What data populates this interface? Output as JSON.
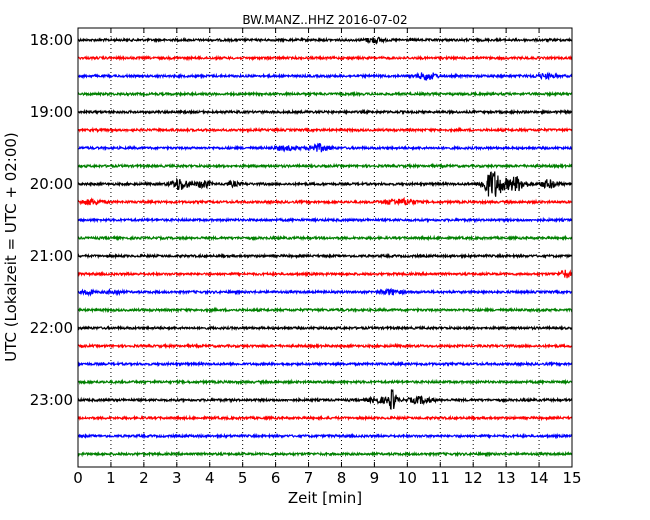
{
  "chart_data": {
    "type": "line",
    "title": "BW.MANZ..HHZ 2016-07-02",
    "xlabel": "Zeit  [min]",
    "ylabel": "UTC (Lokalzeit = UTC + 02:00)",
    "x_ticks": [
      0,
      1,
      2,
      3,
      4,
      5,
      6,
      7,
      8,
      9,
      10,
      11,
      12,
      13,
      14,
      15
    ],
    "xlim": [
      0,
      15
    ],
    "y_tick_labels": [
      "18:00",
      "19:00",
      "20:00",
      "21:00",
      "22:00",
      "23:00"
    ],
    "grid": "vertical dotted",
    "trace_colors": [
      "#000000",
      "#ff0000",
      "#0000ff",
      "#008000"
    ],
    "traces": [
      {
        "start": "18:00",
        "color": "#000000",
        "bursts": [
          {
            "x": 9.0,
            "amp": 2.5,
            "width": 0.5
          }
        ]
      },
      {
        "start": "18:15",
        "color": "#ff0000",
        "bursts": []
      },
      {
        "start": "18:30",
        "color": "#0000ff",
        "bursts": [
          {
            "x": 10.6,
            "amp": 3.5,
            "width": 0.6
          },
          {
            "x": 14.2,
            "amp": 2,
            "width": 0.6
          }
        ]
      },
      {
        "start": "18:45",
        "color": "#008000",
        "bursts": []
      },
      {
        "start": "19:00",
        "color": "#000000",
        "bursts": []
      },
      {
        "start": "19:15",
        "color": "#ff0000",
        "bursts": []
      },
      {
        "start": "19:30",
        "color": "#0000ff",
        "bursts": [
          {
            "x": 6.3,
            "amp": 2,
            "width": 0.6
          },
          {
            "x": 7.3,
            "amp": 3.5,
            "width": 0.6
          }
        ]
      },
      {
        "start": "19:45",
        "color": "#008000",
        "bursts": []
      },
      {
        "start": "20:00",
        "color": "#000000",
        "bursts": [
          {
            "x": 3.1,
            "amp": 6,
            "width": 0.5
          },
          {
            "x": 3.8,
            "amp": 4,
            "width": 0.4
          },
          {
            "x": 4.7,
            "amp": 2,
            "width": 0.4
          },
          {
            "x": 12.6,
            "amp": 14,
            "width": 0.6
          },
          {
            "x": 13.3,
            "amp": 7,
            "width": 0.6
          },
          {
            "x": 14.3,
            "amp": 4,
            "width": 0.5
          }
        ]
      },
      {
        "start": "20:15",
        "color": "#ff0000",
        "bursts": [
          {
            "x": 0.4,
            "amp": 2.5,
            "width": 0.6
          },
          {
            "x": 9.5,
            "amp": 2,
            "width": 0.6
          },
          {
            "x": 10.0,
            "amp": 2.5,
            "width": 0.6
          }
        ]
      },
      {
        "start": "20:30",
        "color": "#0000ff",
        "bursts": []
      },
      {
        "start": "20:45",
        "color": "#008000",
        "bursts": []
      },
      {
        "start": "21:00",
        "color": "#000000",
        "bursts": []
      },
      {
        "start": "21:15",
        "color": "#ff0000",
        "bursts": [
          {
            "x": 14.8,
            "amp": 4,
            "width": 0.3
          }
        ]
      },
      {
        "start": "21:30",
        "color": "#0000ff",
        "bursts": [
          {
            "x": 0.3,
            "amp": 2.5,
            "width": 0.3
          },
          {
            "x": 1.1,
            "amp": 2,
            "width": 0.4
          },
          {
            "x": 9.5,
            "amp": 2.5,
            "width": 0.6
          }
        ]
      },
      {
        "start": "21:45",
        "color": "#008000",
        "bursts": []
      },
      {
        "start": "22:00",
        "color": "#000000",
        "bursts": []
      },
      {
        "start": "22:15",
        "color": "#ff0000",
        "bursts": []
      },
      {
        "start": "22:30",
        "color": "#0000ff",
        "bursts": []
      },
      {
        "start": "22:45",
        "color": "#008000",
        "bursts": []
      },
      {
        "start": "23:00",
        "color": "#000000",
        "bursts": [
          {
            "x": 9.55,
            "amp": 10,
            "width": 0.25
          },
          {
            "x": 9.1,
            "amp": 2.5,
            "width": 0.6
          },
          {
            "x": 10.4,
            "amp": 3,
            "width": 0.7
          }
        ]
      },
      {
        "start": "23:15",
        "color": "#ff0000",
        "bursts": []
      },
      {
        "start": "23:30",
        "color": "#0000ff",
        "bursts": []
      },
      {
        "start": "23:45",
        "color": "#008000",
        "bursts": []
      }
    ]
  }
}
